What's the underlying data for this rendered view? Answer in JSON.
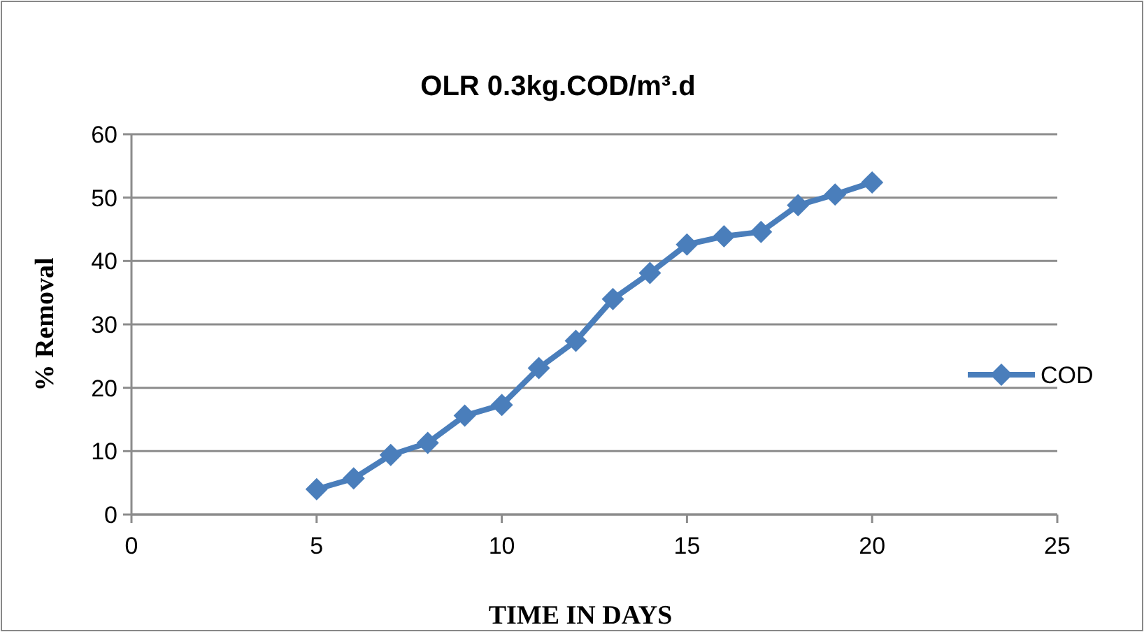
{
  "chart_data": {
    "type": "line",
    "title": "OLR 0.3kg.COD/m³.d",
    "xlabel": "TIME IN DAYS",
    "ylabel": "% Removal",
    "x": [
      5,
      6,
      7,
      8,
      9,
      10,
      11,
      12,
      13,
      14,
      15,
      16,
      17,
      18,
      19,
      20
    ],
    "series": [
      {
        "name": "COD",
        "color": "#4a7ebb",
        "values": [
          4.0,
          5.7,
          9.4,
          11.3,
          15.6,
          17.3,
          23.1,
          27.4,
          34.0,
          38.1,
          42.6,
          43.9,
          44.6,
          48.8,
          50.5,
          52.4
        ]
      }
    ],
    "xlim": [
      0,
      25
    ],
    "xticks": [
      0,
      5,
      10,
      15,
      20,
      25
    ],
    "ylim": [
      0,
      60
    ],
    "yticks": [
      0,
      10,
      20,
      30,
      40,
      50,
      60
    ],
    "grid": "y",
    "legend": "right",
    "marker": "diamond",
    "line_style": "solid"
  }
}
